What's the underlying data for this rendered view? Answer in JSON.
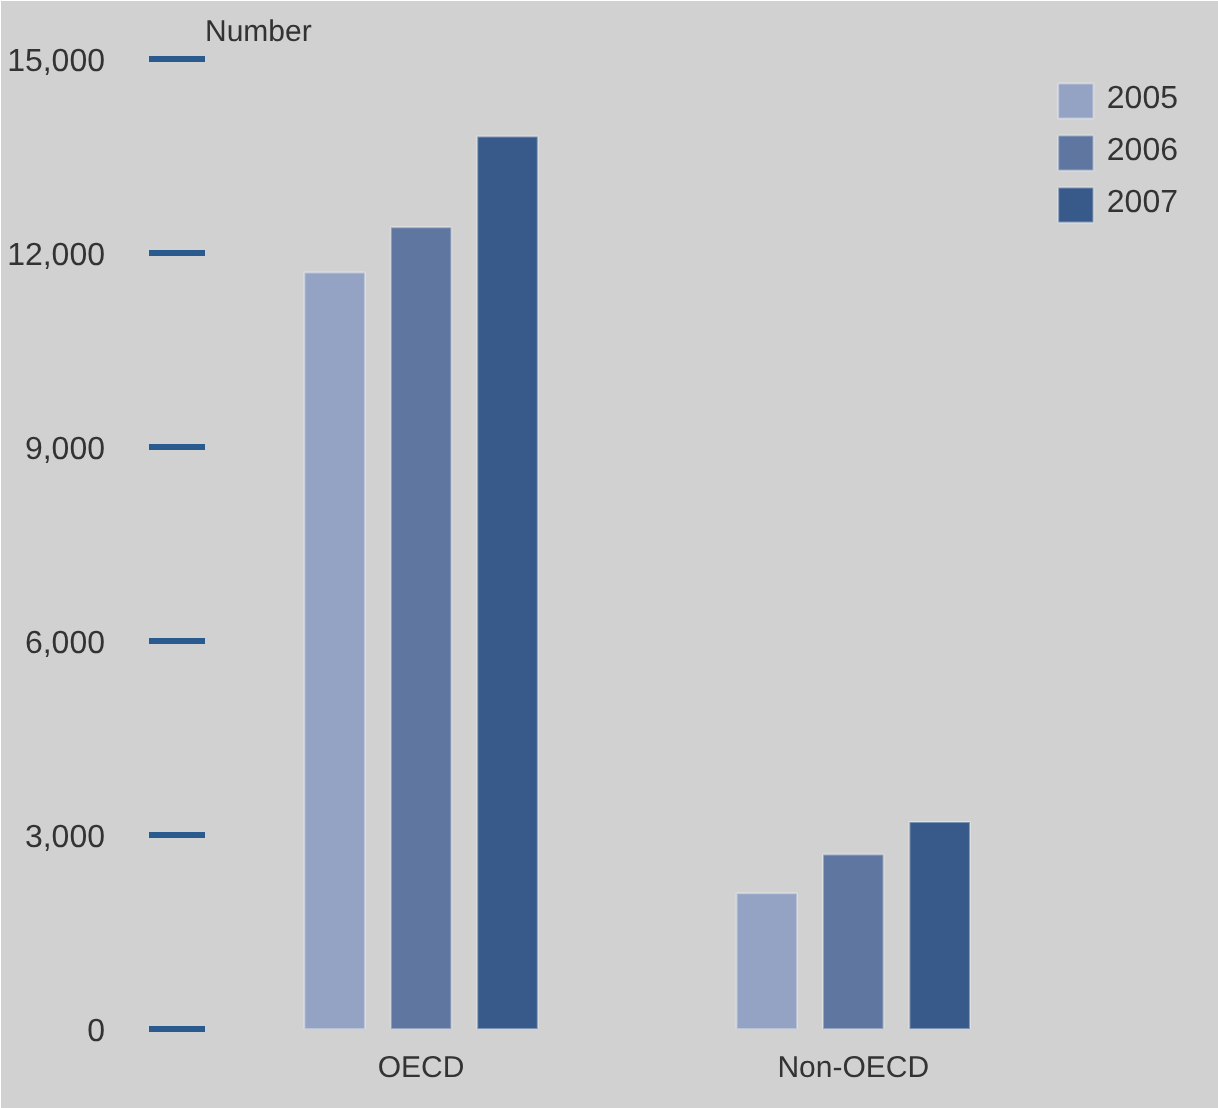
{
  "chart_data": {
    "type": "bar",
    "ylabel": "Number",
    "categories": [
      "OECD",
      "Non-OECD"
    ],
    "series": [
      {
        "name": "2005",
        "color": "#94a3c4",
        "values": [
          11700,
          2100
        ]
      },
      {
        "name": "2006",
        "color": "#5f77a0",
        "values": [
          12400,
          2700
        ]
      },
      {
        "name": "2007",
        "color": "#375a8a",
        "values": [
          13800,
          3200
        ]
      }
    ],
    "ylim": [
      0,
      15000
    ],
    "yticks": [
      {
        "value": 0,
        "label": "0"
      },
      {
        "value": 3000,
        "label": "3,000"
      },
      {
        "value": 6000,
        "label": "6,000"
      },
      {
        "value": 9000,
        "label": "9,000"
      },
      {
        "value": 12000,
        "label": "12,000"
      },
      {
        "value": 15000,
        "label": "15,000"
      }
    ],
    "legend": "top right"
  }
}
